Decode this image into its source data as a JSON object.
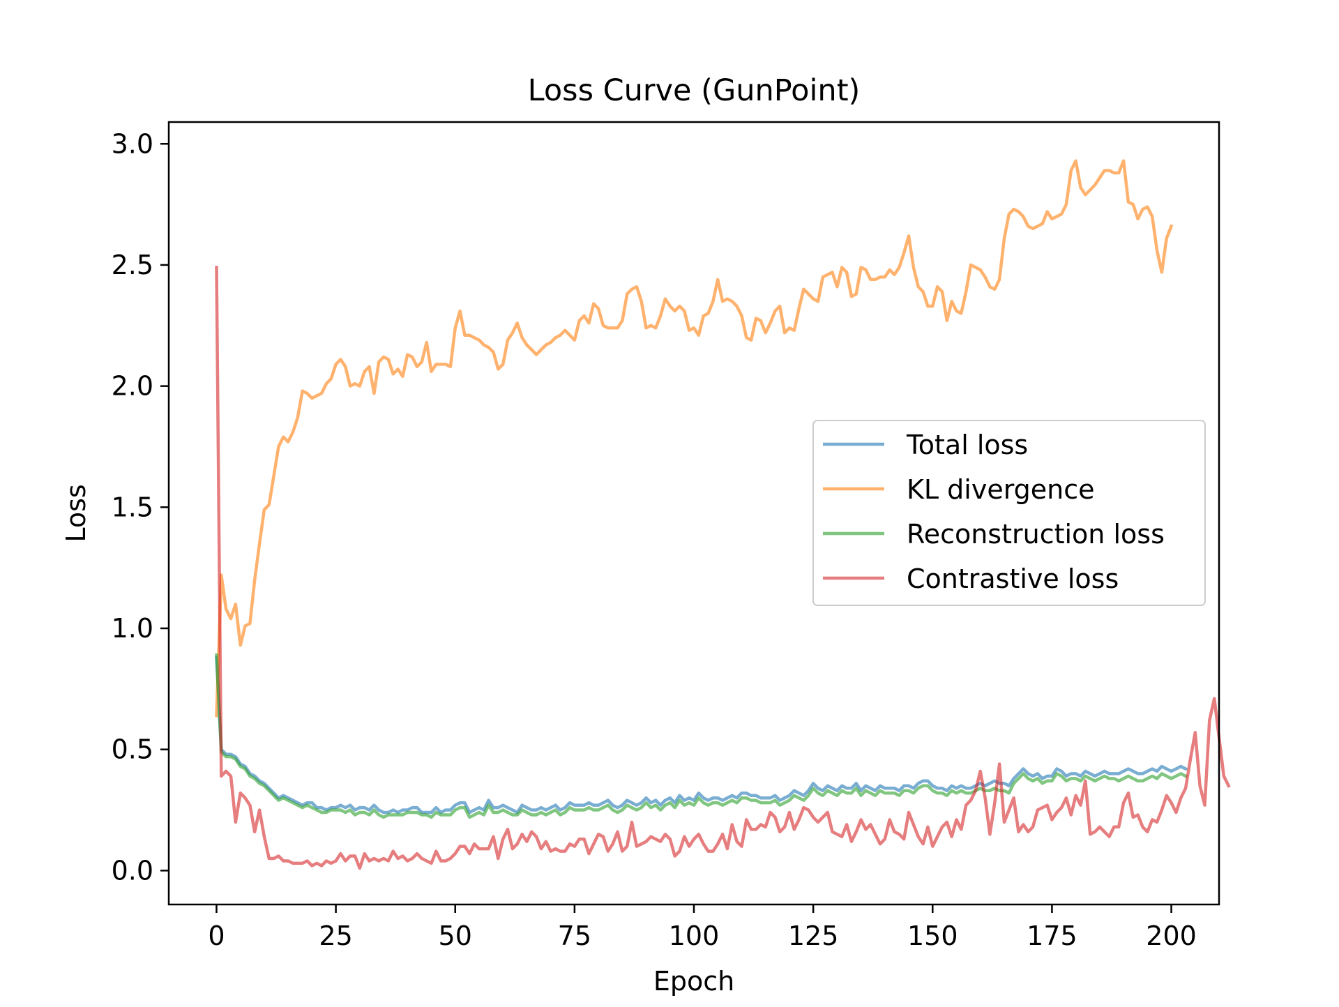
{
  "chart_data": {
    "type": "line",
    "title": "Loss Curve (GunPoint)",
    "xlabel": "Epoch",
    "ylabel": "Loss",
    "xlim": [
      -10,
      210
    ],
    "ylim": [
      -0.14,
      3.09
    ],
    "xticks": [
      0,
      25,
      50,
      75,
      100,
      125,
      150,
      175,
      200
    ],
    "yticks": [
      0.0,
      0.5,
      1.0,
      1.5,
      2.0,
      2.5,
      3.0
    ],
    "xtick_labels": [
      "0",
      "25",
      "50",
      "75",
      "100",
      "125",
      "150",
      "175",
      "200"
    ],
    "ytick_labels": [
      "0.0",
      "0.5",
      "1.0",
      "1.5",
      "2.0",
      "2.5",
      "3.0"
    ],
    "grid": false,
    "legend_position": "center-right",
    "x_start": 0,
    "x_step": 1,
    "series": [
      {
        "name": "Total loss",
        "color": "#1f77b4",
        "values": [
          0.88,
          0.5,
          0.48,
          0.48,
          0.47,
          0.44,
          0.43,
          0.4,
          0.39,
          0.37,
          0.36,
          0.34,
          0.32,
          0.3,
          0.31,
          0.3,
          0.29,
          0.28,
          0.27,
          0.28,
          0.28,
          0.26,
          0.26,
          0.25,
          0.26,
          0.26,
          0.27,
          0.26,
          0.27,
          0.25,
          0.26,
          0.26,
          0.25,
          0.27,
          0.25,
          0.24,
          0.24,
          0.25,
          0.24,
          0.25,
          0.25,
          0.26,
          0.26,
          0.24,
          0.24,
          0.24,
          0.26,
          0.24,
          0.25,
          0.25,
          0.27,
          0.28,
          0.28,
          0.24,
          0.25,
          0.26,
          0.25,
          0.29,
          0.26,
          0.26,
          0.27,
          0.26,
          0.25,
          0.24,
          0.27,
          0.26,
          0.25,
          0.25,
          0.26,
          0.25,
          0.26,
          0.27,
          0.25,
          0.26,
          0.28,
          0.27,
          0.27,
          0.27,
          0.28,
          0.27,
          0.27,
          0.28,
          0.29,
          0.27,
          0.26,
          0.27,
          0.29,
          0.28,
          0.27,
          0.28,
          0.3,
          0.28,
          0.29,
          0.27,
          0.29,
          0.3,
          0.28,
          0.31,
          0.29,
          0.3,
          0.29,
          0.32,
          0.3,
          0.29,
          0.3,
          0.3,
          0.29,
          0.3,
          0.31,
          0.3,
          0.32,
          0.32,
          0.31,
          0.31,
          0.3,
          0.3,
          0.3,
          0.31,
          0.29,
          0.3,
          0.31,
          0.33,
          0.32,
          0.31,
          0.33,
          0.36,
          0.34,
          0.33,
          0.35,
          0.34,
          0.33,
          0.35,
          0.34,
          0.34,
          0.36,
          0.33,
          0.35,
          0.34,
          0.33,
          0.35,
          0.34,
          0.34,
          0.34,
          0.33,
          0.35,
          0.35,
          0.34,
          0.36,
          0.37,
          0.37,
          0.35,
          0.34,
          0.34,
          0.33,
          0.35,
          0.34,
          0.35,
          0.34,
          0.34,
          0.35,
          0.36,
          0.35,
          0.36,
          0.37,
          0.36,
          0.36,
          0.35,
          0.38,
          0.4,
          0.42,
          0.4,
          0.39,
          0.4,
          0.38,
          0.39,
          0.39,
          0.42,
          0.41,
          0.39,
          0.4,
          0.4,
          0.39,
          0.41,
          0.4,
          0.39,
          0.4,
          0.41,
          0.4,
          0.4,
          0.4,
          0.41,
          0.42,
          0.41,
          0.4,
          0.4,
          0.41,
          0.42,
          0.41,
          0.43,
          0.42,
          0.41,
          0.42,
          0.43,
          0.42
        ]
      },
      {
        "name": "KL divergence",
        "color": "#ff7f0e",
        "values": [
          0.64,
          1.22,
          1.08,
          1.04,
          1.1,
          0.93,
          1.01,
          1.02,
          1.2,
          1.35,
          1.49,
          1.51,
          1.63,
          1.75,
          1.79,
          1.77,
          1.81,
          1.87,
          1.98,
          1.97,
          1.95,
          1.96,
          1.97,
          2.01,
          2.03,
          2.09,
          2.11,
          2.08,
          2.0,
          2.01,
          2.0,
          2.06,
          2.08,
          1.97,
          2.1,
          2.12,
          2.11,
          2.05,
          2.07,
          2.04,
          2.13,
          2.12,
          2.08,
          2.1,
          2.18,
          2.06,
          2.09,
          2.09,
          2.09,
          2.08,
          2.24,
          2.31,
          2.21,
          2.21,
          2.2,
          2.19,
          2.17,
          2.16,
          2.14,
          2.07,
          2.09,
          2.19,
          2.22,
          2.26,
          2.2,
          2.17,
          2.15,
          2.13,
          2.15,
          2.17,
          2.18,
          2.2,
          2.21,
          2.23,
          2.21,
          2.19,
          2.27,
          2.29,
          2.26,
          2.34,
          2.32,
          2.25,
          2.24,
          2.24,
          2.24,
          2.27,
          2.38,
          2.4,
          2.41,
          2.35,
          2.24,
          2.25,
          2.24,
          2.29,
          2.36,
          2.33,
          2.31,
          2.33,
          2.31,
          2.23,
          2.24,
          2.21,
          2.29,
          2.3,
          2.35,
          2.44,
          2.35,
          2.36,
          2.35,
          2.33,
          2.29,
          2.2,
          2.19,
          2.28,
          2.27,
          2.22,
          2.26,
          2.31,
          2.33,
          2.22,
          2.24,
          2.23,
          2.32,
          2.4,
          2.38,
          2.36,
          2.35,
          2.45,
          2.46,
          2.47,
          2.41,
          2.49,
          2.47,
          2.37,
          2.38,
          2.49,
          2.48,
          2.44,
          2.44,
          2.45,
          2.45,
          2.48,
          2.46,
          2.49,
          2.55,
          2.62,
          2.49,
          2.41,
          2.39,
          2.33,
          2.33,
          2.41,
          2.39,
          2.27,
          2.35,
          2.31,
          2.3,
          2.39,
          2.5,
          2.49,
          2.48,
          2.45,
          2.41,
          2.4,
          2.44,
          2.61,
          2.71,
          2.73,
          2.72,
          2.7,
          2.66,
          2.65,
          2.66,
          2.67,
          2.72,
          2.69,
          2.7,
          2.71,
          2.75,
          2.89,
          2.93,
          2.82,
          2.79,
          2.81,
          2.83,
          2.86,
          2.89,
          2.89,
          2.88,
          2.88,
          2.93,
          2.76,
          2.75,
          2.69,
          2.73,
          2.74,
          2.7,
          2.56,
          2.47,
          2.61,
          2.66
        ]
      },
      {
        "name": "Reconstruction loss",
        "color": "#2ca02c",
        "values": [
          0.89,
          0.49,
          0.47,
          0.47,
          0.46,
          0.43,
          0.42,
          0.39,
          0.38,
          0.36,
          0.35,
          0.33,
          0.31,
          0.29,
          0.3,
          0.29,
          0.28,
          0.27,
          0.26,
          0.27,
          0.26,
          0.25,
          0.24,
          0.24,
          0.25,
          0.25,
          0.25,
          0.24,
          0.25,
          0.23,
          0.24,
          0.24,
          0.23,
          0.25,
          0.23,
          0.22,
          0.23,
          0.23,
          0.23,
          0.23,
          0.24,
          0.24,
          0.24,
          0.23,
          0.23,
          0.22,
          0.24,
          0.23,
          0.23,
          0.23,
          0.25,
          0.26,
          0.26,
          0.22,
          0.23,
          0.24,
          0.23,
          0.27,
          0.24,
          0.24,
          0.25,
          0.24,
          0.23,
          0.23,
          0.25,
          0.24,
          0.23,
          0.23,
          0.24,
          0.23,
          0.24,
          0.25,
          0.23,
          0.24,
          0.26,
          0.25,
          0.25,
          0.25,
          0.26,
          0.25,
          0.25,
          0.26,
          0.27,
          0.25,
          0.24,
          0.25,
          0.27,
          0.26,
          0.25,
          0.26,
          0.28,
          0.26,
          0.27,
          0.25,
          0.27,
          0.28,
          0.26,
          0.29,
          0.27,
          0.28,
          0.27,
          0.3,
          0.28,
          0.27,
          0.28,
          0.28,
          0.27,
          0.28,
          0.29,
          0.28,
          0.3,
          0.3,
          0.29,
          0.29,
          0.28,
          0.28,
          0.28,
          0.29,
          0.27,
          0.28,
          0.29,
          0.31,
          0.3,
          0.29,
          0.31,
          0.34,
          0.32,
          0.31,
          0.33,
          0.32,
          0.31,
          0.33,
          0.32,
          0.32,
          0.34,
          0.31,
          0.33,
          0.32,
          0.31,
          0.33,
          0.32,
          0.32,
          0.32,
          0.31,
          0.33,
          0.33,
          0.32,
          0.34,
          0.35,
          0.35,
          0.33,
          0.32,
          0.32,
          0.31,
          0.33,
          0.32,
          0.33,
          0.32,
          0.32,
          0.33,
          0.34,
          0.33,
          0.33,
          0.34,
          0.33,
          0.33,
          0.32,
          0.36,
          0.38,
          0.4,
          0.38,
          0.37,
          0.38,
          0.36,
          0.37,
          0.37,
          0.4,
          0.39,
          0.37,
          0.38,
          0.38,
          0.37,
          0.39,
          0.38,
          0.37,
          0.38,
          0.39,
          0.38,
          0.38,
          0.37,
          0.38,
          0.39,
          0.38,
          0.37,
          0.37,
          0.38,
          0.39,
          0.38,
          0.4,
          0.39,
          0.38,
          0.39,
          0.4,
          0.39
        ]
      },
      {
        "name": "Contrastive loss",
        "color": "#d62728",
        "values": [
          2.49,
          0.39,
          0.41,
          0.39,
          0.2,
          0.32,
          0.3,
          0.27,
          0.16,
          0.25,
          0.14,
          0.05,
          0.05,
          0.06,
          0.04,
          0.04,
          0.03,
          0.03,
          0.03,
          0.04,
          0.02,
          0.03,
          0.02,
          0.04,
          0.03,
          0.04,
          0.07,
          0.04,
          0.06,
          0.06,
          0.01,
          0.07,
          0.04,
          0.05,
          0.04,
          0.05,
          0.04,
          0.08,
          0.05,
          0.06,
          0.04,
          0.05,
          0.07,
          0.05,
          0.04,
          0.03,
          0.08,
          0.04,
          0.04,
          0.05,
          0.07,
          0.1,
          0.1,
          0.07,
          0.11,
          0.09,
          0.09,
          0.09,
          0.14,
          0.05,
          0.13,
          0.17,
          0.09,
          0.11,
          0.15,
          0.12,
          0.16,
          0.14,
          0.09,
          0.12,
          0.08,
          0.09,
          0.08,
          0.08,
          0.11,
          0.1,
          0.13,
          0.13,
          0.07,
          0.11,
          0.15,
          0.14,
          0.08,
          0.11,
          0.16,
          0.08,
          0.1,
          0.2,
          0.1,
          0.11,
          0.12,
          0.14,
          0.13,
          0.12,
          0.15,
          0.13,
          0.06,
          0.08,
          0.14,
          0.1,
          0.13,
          0.15,
          0.11,
          0.08,
          0.08,
          0.11,
          0.15,
          0.09,
          0.19,
          0.12,
          0.1,
          0.21,
          0.17,
          0.17,
          0.19,
          0.18,
          0.24,
          0.22,
          0.16,
          0.18,
          0.24,
          0.17,
          0.21,
          0.26,
          0.25,
          0.22,
          0.2,
          0.22,
          0.24,
          0.16,
          0.15,
          0.14,
          0.19,
          0.12,
          0.16,
          0.21,
          0.17,
          0.19,
          0.15,
          0.11,
          0.13,
          0.21,
          0.16,
          0.15,
          0.13,
          0.24,
          0.19,
          0.14,
          0.11,
          0.18,
          0.1,
          0.14,
          0.18,
          0.2,
          0.14,
          0.21,
          0.17,
          0.27,
          0.29,
          0.33,
          0.41,
          0.3,
          0.15,
          0.28,
          0.44,
          0.2,
          0.25,
          0.3,
          0.16,
          0.19,
          0.16,
          0.18,
          0.25,
          0.26,
          0.27,
          0.21,
          0.24,
          0.26,
          0.3,
          0.23,
          0.31,
          0.27,
          0.37,
          0.15,
          0.16,
          0.18,
          0.16,
          0.14,
          0.18,
          0.18,
          0.28,
          0.32,
          0.22,
          0.23,
          0.18,
          0.16,
          0.21,
          0.2,
          0.25,
          0.31,
          0.28,
          0.24,
          0.3,
          0.34,
          0.46,
          0.57,
          0.35,
          0.27,
          0.62,
          0.71,
          0.55,
          0.39,
          0.35
        ]
      }
    ]
  }
}
